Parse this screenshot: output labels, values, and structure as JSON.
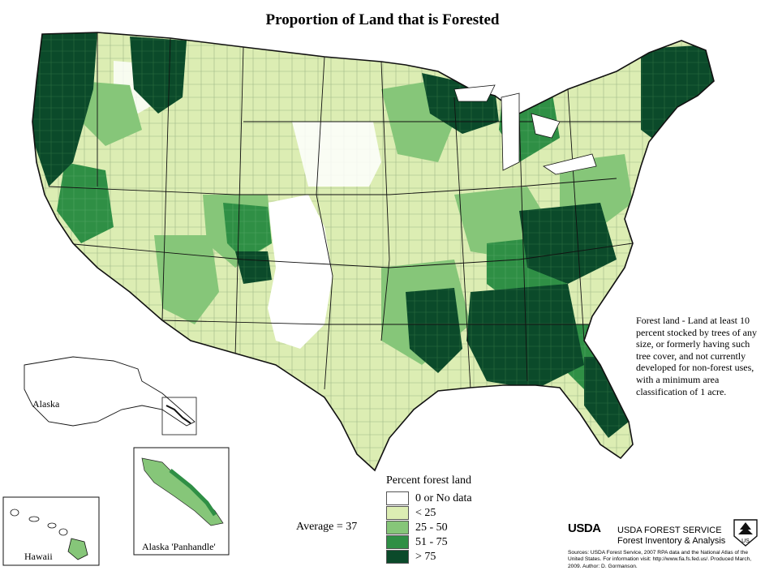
{
  "title": "Proportion of Land that is Forested",
  "legend": {
    "title": "Percent forest land",
    "items": [
      {
        "label": "0 or No data",
        "color": "#ffffff"
      },
      {
        "label": "< 25",
        "color": "#dcedb3"
      },
      {
        "label": "25 - 50",
        "color": "#86c679"
      },
      {
        "label": "51 - 75",
        "color": "#2f8f45"
      },
      {
        "label": "> 75",
        "color": "#0b4a2a"
      }
    ]
  },
  "average": "Average = 37",
  "definition": "Forest land - Land at least 10 percent stocked by trees of any size, or formerly having such tree cover, and not currently developed for non-forest uses, with a minimum area classification of 1 acre.",
  "insets": {
    "alaska": "Alaska",
    "hawaii": "Hawaii",
    "panhandle": "Alaska 'Panhandle'"
  },
  "agency": {
    "logo": "USDA",
    "line1": "USDA FOREST SERVICE",
    "line2": "Forest Inventory & Analysis"
  },
  "sources": "Sources: USDA Forest Service, 2007 RPA data and the National Atlas of the United States. For information visit: http://www.fia.fs.fed.us/. Produced March, 2009. Author: D. Gormanson.",
  "badge": "US"
}
